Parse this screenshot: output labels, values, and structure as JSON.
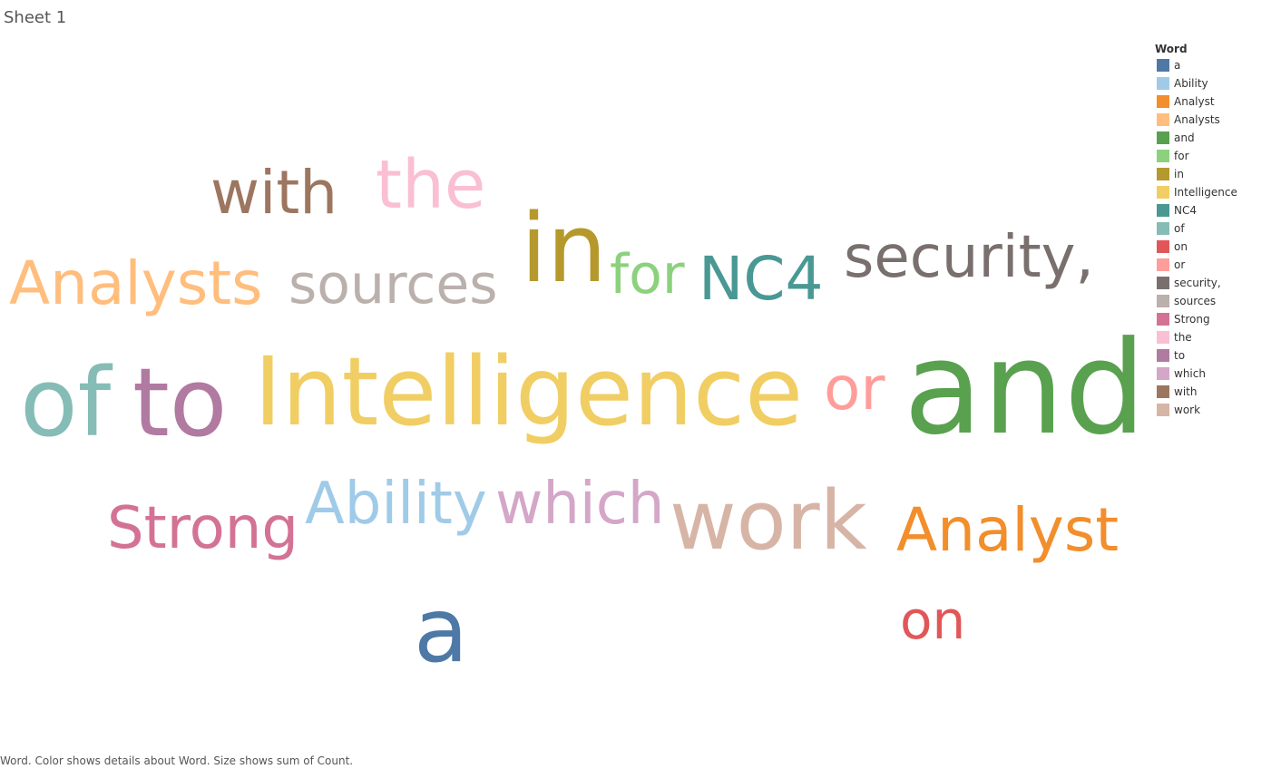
{
  "sheet_title": "Sheet 1",
  "caption": "Word.  Color shows details about Word.  Size shows sum of Count.",
  "chart_data": {
    "type": "word_cloud",
    "dimension": "Word",
    "color_encoding": "Word",
    "size_encoding": "sum of Count",
    "legend": {
      "title": "Word",
      "placement": "right",
      "items": [
        {
          "label": "a",
          "color": "#4e79a7"
        },
        {
          "label": "Ability",
          "color": "#a0cbe8"
        },
        {
          "label": "Analyst",
          "color": "#f28e2b"
        },
        {
          "label": "Analysts",
          "color": "#ffbe7d"
        },
        {
          "label": "and",
          "color": "#59a14f"
        },
        {
          "label": "for",
          "color": "#8cd17d"
        },
        {
          "label": "in",
          "color": "#b6992d"
        },
        {
          "label": "Intelligence",
          "color": "#f1ce63"
        },
        {
          "label": "NC4",
          "color": "#499894"
        },
        {
          "label": "of",
          "color": "#86bcb6"
        },
        {
          "label": "on",
          "color": "#e15759"
        },
        {
          "label": "or",
          "color": "#ff9d9a"
        },
        {
          "label": "security,",
          "color": "#79706e"
        },
        {
          "label": "sources",
          "color": "#bab0ac"
        },
        {
          "label": "Strong",
          "color": "#d37295"
        },
        {
          "label": "the",
          "color": "#fabfd2"
        },
        {
          "label": "to",
          "color": "#b07aa1"
        },
        {
          "label": "which",
          "color": "#d4a6c8"
        },
        {
          "label": "with",
          "color": "#9d7660"
        },
        {
          "label": "work",
          "color": "#d7b5a6"
        }
      ]
    },
    "words": [
      {
        "text": "with",
        "count": 2,
        "color": "#9d7660"
      },
      {
        "text": "the",
        "count": 2,
        "color": "#fabfd2"
      },
      {
        "text": "Analysts",
        "count": 2,
        "color": "#ffbe7d"
      },
      {
        "text": "sources",
        "count": 2,
        "color": "#bab0ac"
      },
      {
        "text": "in",
        "count": 3,
        "color": "#b6992d"
      },
      {
        "text": "for",
        "count": 2,
        "color": "#8cd17d"
      },
      {
        "text": "NC4",
        "count": 2,
        "color": "#499894"
      },
      {
        "text": "security,",
        "count": 2,
        "color": "#79706e"
      },
      {
        "text": "of",
        "count": 3,
        "color": "#86bcb6"
      },
      {
        "text": "to",
        "count": 3,
        "color": "#b07aa1"
      },
      {
        "text": "Intelligence",
        "count": 3,
        "color": "#f1ce63"
      },
      {
        "text": "or",
        "count": 2,
        "color": "#ff9d9a"
      },
      {
        "text": "and",
        "count": 4,
        "color": "#59a14f"
      },
      {
        "text": "Strong",
        "count": 2,
        "color": "#d37295"
      },
      {
        "text": "Ability",
        "count": 2,
        "color": "#a0cbe8"
      },
      {
        "text": "which",
        "count": 2,
        "color": "#d4a6c8"
      },
      {
        "text": "work",
        "count": 3,
        "color": "#d7b5a6"
      },
      {
        "text": "Analyst",
        "count": 2,
        "color": "#f28e2b"
      },
      {
        "text": "a",
        "count": 3,
        "color": "#4e79a7"
      },
      {
        "text": "on",
        "count": 2,
        "color": "#e15759"
      }
    ]
  }
}
